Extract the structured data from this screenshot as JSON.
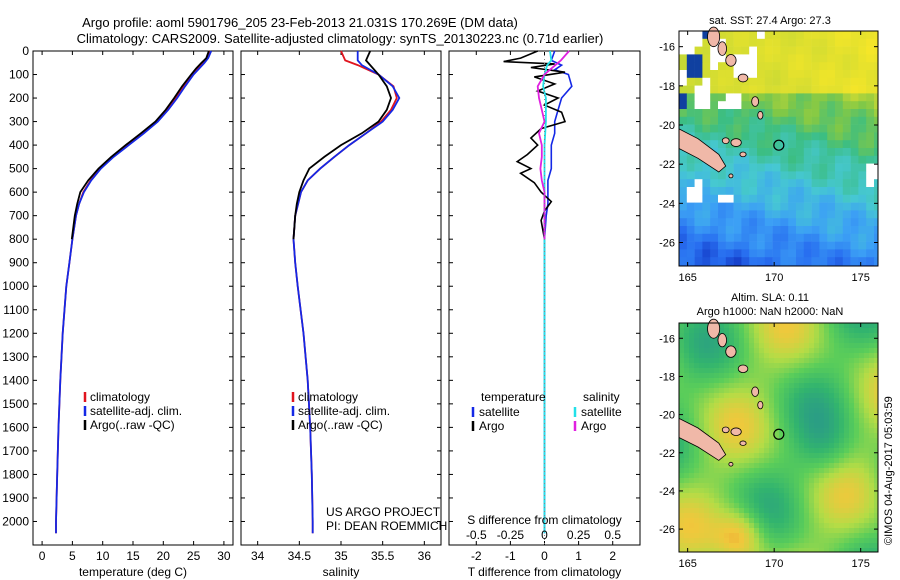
{
  "title": {
    "line1": "Argo profile: aoml 5901796_205 23-Feb-2013 21.031S 170.269E (DM data)",
    "line2": "Climatology: CARS2009. Satellite-adjusted climatology: synTS_20130223.nc (0.71d earlier)"
  },
  "colors": {
    "climatology": "#e0141e",
    "satellite": "#1428e6",
    "argo": "#000000",
    "s_satellite": "#22e0e8",
    "s_argo": "#e020e0"
  },
  "chart_data": [
    {
      "type": "line",
      "id": "temperature",
      "xlabel": "temperature (deg C)",
      "xlim": [
        -1.5,
        31.5
      ],
      "xticks": [
        0,
        5,
        10,
        15,
        20,
        25,
        30
      ],
      "ylim": [
        0,
        2100
      ],
      "yticks": [
        0,
        100,
        200,
        300,
        400,
        500,
        600,
        700,
        800,
        900,
        1000,
        1100,
        1200,
        1300,
        1400,
        1500,
        1600,
        1700,
        1800,
        1900,
        2000
      ],
      "legend": [
        "climatology",
        "satellite-adj. clim.",
        "Argo(..raw -QC)"
      ],
      "series": [
        {
          "name": "climatology",
          "depth": [
            0,
            30,
            50,
            75,
            100,
            150,
            200,
            250,
            300,
            350,
            400,
            450,
            500,
            550,
            600,
            650,
            700,
            800,
            900,
            1000,
            1200,
            1400,
            1600,
            1800,
            2000,
            2050
          ],
          "values": [
            27.6,
            27.2,
            26.5,
            25.6,
            24.8,
            23.4,
            22.1,
            20.6,
            18.9,
            16.6,
            14.2,
            11.6,
            9.6,
            8.0,
            6.8,
            6.1,
            5.6,
            5.0,
            4.5,
            4.0,
            3.4,
            3.0,
            2.7,
            2.5,
            2.3,
            2.3
          ]
        },
        {
          "name": "satellite-adj. clim.",
          "depth": [
            0,
            30,
            50,
            75,
            100,
            150,
            200,
            250,
            300,
            350,
            400,
            450,
            500,
            550,
            600,
            650,
            700,
            800,
            900,
            1000,
            1200,
            1400,
            1600,
            1800,
            2000,
            2050
          ],
          "values": [
            27.9,
            27.4,
            26.8,
            25.9,
            25.0,
            23.6,
            22.3,
            20.8,
            19.1,
            16.8,
            14.3,
            11.8,
            9.7,
            8.1,
            6.9,
            6.1,
            5.6,
            5.0,
            4.5,
            4.0,
            3.4,
            3.0,
            2.7,
            2.5,
            2.3,
            2.3
          ]
        },
        {
          "name": "Argo(..raw -QC)",
          "depth": [
            0,
            30,
            50,
            75,
            100,
            150,
            200,
            250,
            300,
            350,
            400,
            450,
            500,
            550,
            600,
            650,
            700,
            800
          ],
          "values": [
            27.5,
            27.1,
            26.3,
            25.4,
            24.6,
            23.1,
            21.8,
            20.4,
            18.7,
            16.3,
            13.8,
            11.4,
            9.3,
            7.6,
            6.3,
            5.8,
            5.4,
            4.9
          ]
        }
      ]
    },
    {
      "type": "line",
      "id": "salinity",
      "xlabel": "salinity",
      "xlim": [
        33.8,
        36.2
      ],
      "xticks": [
        34,
        34.5,
        35,
        35.5,
        36
      ],
      "ylim": [
        0,
        2100
      ],
      "legend": [
        "climatology",
        "satellite-adj. clim.",
        "Argo(..raw -QC)"
      ],
      "series": [
        {
          "name": "climatology",
          "depth": [
            0,
            40,
            60,
            100,
            150,
            200,
            250,
            300,
            350,
            400,
            450,
            500,
            550,
            600,
            700,
            800,
            900,
            1000,
            1200,
            1400,
            1600,
            1800,
            2000,
            2050
          ],
          "values": [
            35.0,
            35.05,
            35.2,
            35.45,
            35.63,
            35.67,
            35.6,
            35.48,
            35.3,
            35.1,
            34.92,
            34.75,
            34.6,
            34.52,
            34.45,
            34.43,
            34.45,
            34.48,
            34.55,
            34.6,
            34.63,
            34.65,
            34.66,
            34.66
          ]
        },
        {
          "name": "satellite-adj. clim.",
          "depth": [
            0,
            40,
            60,
            100,
            150,
            200,
            250,
            300,
            350,
            400,
            450,
            500,
            550,
            600,
            700,
            800,
            900,
            1000,
            1200,
            1400,
            1600,
            1800,
            2000,
            2050
          ],
          "values": [
            35.2,
            35.2,
            35.25,
            35.45,
            35.62,
            35.7,
            35.62,
            35.5,
            35.3,
            35.1,
            34.92,
            34.75,
            34.6,
            34.52,
            34.45,
            34.43,
            34.45,
            34.48,
            34.55,
            34.6,
            34.63,
            34.65,
            34.66,
            34.66
          ]
        },
        {
          "name": "Argo(..raw -QC)",
          "depth": [
            0,
            40,
            60,
            100,
            150,
            200,
            250,
            300,
            350,
            400,
            450,
            500,
            550,
            600,
            650,
            700,
            800
          ],
          "values": [
            35.35,
            35.3,
            35.35,
            35.45,
            35.55,
            35.6,
            35.55,
            35.45,
            35.25,
            35.0,
            34.8,
            34.62,
            34.55,
            34.5,
            34.47,
            34.45,
            34.43
          ]
        }
      ]
    },
    {
      "type": "line",
      "id": "difference",
      "xlabel": "T difference from climatology",
      "xlabel_top": "S difference from climatology",
      "xlim": [
        -2.8,
        2.8
      ],
      "xticks": [
        -2,
        -1,
        0,
        1,
        2
      ],
      "s_ticks": [
        "-0.5",
        "-0.25",
        "0",
        "0.25",
        "0.5"
      ],
      "s_tick_values": [
        -0.5,
        -0.25,
        0,
        0.25,
        0.5
      ],
      "legend_temperature": {
        "title": "temperature",
        "items": [
          "satellite",
          "Argo"
        ]
      },
      "legend_salinity": {
        "title": "salinity",
        "items": [
          "satellite",
          "Argo"
        ]
      },
      "series": [
        {
          "name": "T satellite",
          "depth": [
            0,
            40,
            60,
            80,
            100,
            150,
            200,
            250,
            300,
            350,
            400,
            450,
            500,
            550,
            600,
            650,
            700,
            800,
            1000,
            1500,
            2050
          ],
          "values": [
            0.3,
            0.2,
            0.5,
            0.3,
            0.7,
            0.8,
            0.5,
            0.4,
            0.3,
            0.3,
            0.2,
            0.2,
            0.2,
            0.1,
            0.1,
            0.1,
            0.05,
            0,
            0,
            0,
            0
          ]
        },
        {
          "name": "T Argo",
          "depth": [
            0,
            30,
            45,
            55,
            70,
            90,
            110,
            140,
            170,
            200,
            230,
            260,
            300,
            330,
            370,
            400,
            440,
            470,
            500,
            520,
            560,
            600,
            640,
            680,
            720,
            800
          ],
          "values": [
            -0.2,
            -0.7,
            -1.2,
            0.3,
            -0.4,
            0.6,
            -0.3,
            0.3,
            -0.2,
            0.4,
            0.0,
            0.5,
            0.6,
            -0.1,
            -0.4,
            -0.2,
            -0.5,
            -0.8,
            -0.4,
            -0.7,
            -0.3,
            -0.1,
            0.2,
            0.0,
            -0.1,
            0.0
          ]
        },
        {
          "name": "S satellite",
          "depth": [
            0,
            40,
            60,
            100,
            150,
            200,
            300,
            400,
            500,
            600,
            800,
            1000,
            2050
          ],
          "values": [
            0.04,
            0.05,
            0.02,
            0.0,
            -0.01,
            0.01,
            0.01,
            0.0,
            0.0,
            0.0,
            0.0,
            0.0,
            0.0
          ]
        },
        {
          "name": "S Argo",
          "depth": [
            0,
            40,
            60,
            100,
            150,
            200,
            250,
            300,
            350,
            400,
            450,
            500,
            550,
            600,
            650,
            700,
            800
          ],
          "values": [
            0.18,
            0.12,
            0.08,
            0.0,
            -0.05,
            -0.04,
            -0.02,
            0.0,
            -0.04,
            -0.02,
            -0.02,
            -0.03,
            -0.02,
            0.0,
            0.0,
            0.0,
            0.0
          ]
        }
      ]
    }
  ],
  "pi_text": {
    "line1": "US ARGO PROJECT",
    "line2": "PI: DEAN ROEMMICH"
  },
  "sst_map": {
    "title": "sat. SST: 27.4 Argo: 27.3",
    "lat_ticks": [
      "-16",
      "-18",
      "-20",
      "-22",
      "-24",
      "-26"
    ],
    "lat_values": [
      -16,
      -18,
      -20,
      -22,
      -24,
      -26
    ],
    "lon_ticks": [
      "165",
      "170",
      "175"
    ],
    "lon_values": [
      165,
      170,
      175
    ],
    "lon_range": [
      164.5,
      176.0
    ],
    "lat_range": [
      -27.2,
      -15.2
    ],
    "argo_position": {
      "lon": 170.269,
      "lat": -21.031
    }
  },
  "sla_map": {
    "title_line1": "Altim. SLA: 0.11",
    "title_line2": "Argo h1000: NaN h2000: NaN",
    "lat_ticks": [
      "-16",
      "-18",
      "-20",
      "-22",
      "-24",
      "-26"
    ],
    "lat_values": [
      -16,
      -18,
      -20,
      -22,
      -24,
      -26
    ],
    "lon_ticks": [
      "165",
      "170",
      "175"
    ],
    "lon_values": [
      165,
      170,
      175
    ],
    "lon_range": [
      164.5,
      176.0
    ],
    "lat_range": [
      -27.2,
      -15.2
    ],
    "argo_position": {
      "lon": 170.269,
      "lat": -21.031
    }
  },
  "stamp": "©IMOS 04-Aug-2017 05:03:59"
}
